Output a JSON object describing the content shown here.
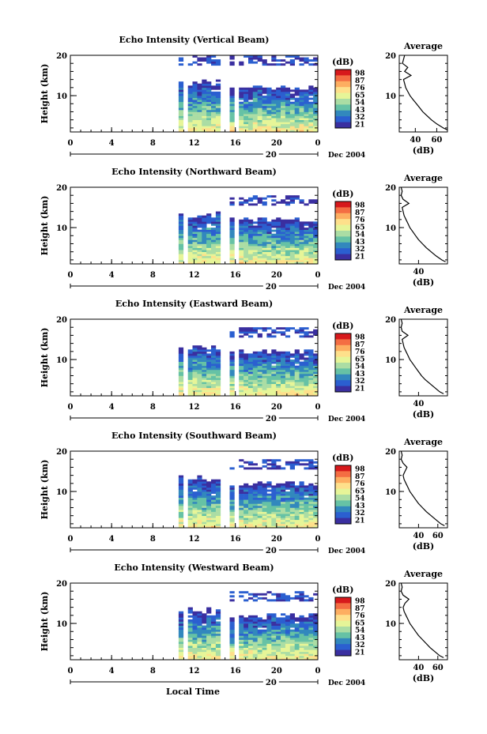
{
  "figure": {
    "xlabel_bottom": "Local Time"
  },
  "colorbar": {
    "unit": "(dB)",
    "tick_labels": [
      "98",
      "87",
      "76",
      "65",
      "54",
      "43",
      "32",
      "21"
    ],
    "colors": [
      "#d7191c",
      "#f46d43",
      "#fdae61",
      "#fee08b",
      "#e6f598",
      "#abdda4",
      "#66c2a5",
      "#3288bd",
      "#2b5fd0",
      "#3a2fa0"
    ]
  },
  "chart_data": [
    {
      "type": "heatmap",
      "title": "Echo Intensity (Vertical Beam)",
      "ylabel": "Height (km)",
      "ylim": [
        1,
        20
      ],
      "yticks": [
        20,
        10
      ],
      "xlim": [
        0,
        24
      ],
      "xticks": [
        "0",
        "4",
        "8",
        "12",
        "16",
        "20",
        "0"
      ],
      "date_axis": {
        "label": "20",
        "suffix": "Dec 2004"
      },
      "data_times": {
        "start": 10.5,
        "end": 24,
        "gaps": [
          [
            11.1,
            11.6
          ],
          [
            12.1,
            12.3
          ],
          [
            14.6,
            15.4
          ],
          [
            15.8,
            16.3
          ]
        ]
      },
      "top_height": 19,
      "colorbar_ticks": [
        "98",
        "87",
        "76",
        "65",
        "54",
        "43",
        "32",
        "21"
      ],
      "profile": {
        "title": "Average",
        "xlabel": "(dB)",
        "xticks": [
          "40",
          "60"
        ],
        "xlim": [
          25,
          70
        ],
        "ylim": [
          1,
          20
        ],
        "yticks": [
          20,
          10
        ],
        "heights": [
          1.5,
          2,
          3,
          4,
          5,
          6,
          7,
          8,
          9,
          10,
          11,
          12,
          13,
          14,
          15,
          16,
          17,
          18,
          19,
          20
        ],
        "values": [
          70,
          66,
          60,
          55,
          51,
          47,
          44,
          41,
          38,
          35,
          33,
          31,
          30,
          29,
          36,
          30,
          33,
          28,
          29,
          30
        ]
      }
    },
    {
      "type": "heatmap",
      "title": "Echo Intensity (Northward Beam)",
      "ylabel": "Height (km)",
      "ylim": [
        1,
        20
      ],
      "yticks": [
        20,
        10
      ],
      "xlim": [
        0,
        24
      ],
      "xticks": [
        "0",
        "4",
        "8",
        "12",
        "16",
        "20",
        "0"
      ],
      "date_axis": {
        "label": "20",
        "suffix": "Dec 2004"
      },
      "data_times": {
        "start": 10.5,
        "end": 24,
        "gaps": [
          [
            11.1,
            11.6
          ],
          [
            12.1,
            12.3
          ],
          [
            14.6,
            15.4
          ],
          [
            15.8,
            16.3
          ]
        ]
      },
      "top_height": 17,
      "colorbar_ticks": [
        "98",
        "87",
        "76",
        "65",
        "54",
        "43",
        "32",
        "21"
      ],
      "profile": {
        "title": "Average",
        "xlabel": "(dB)",
        "xticks": [
          "40"
        ],
        "xlim": [
          20,
          70
        ],
        "ylim": [
          1,
          20
        ],
        "yticks": [
          20,
          10
        ],
        "heights": [
          1.5,
          2,
          3,
          4,
          5,
          6,
          7,
          8,
          9,
          10,
          11,
          12,
          13,
          14,
          15,
          16,
          17,
          18,
          19,
          20
        ],
        "values": [
          68,
          64,
          58,
          53,
          48,
          44,
          40,
          37,
          34,
          31,
          29,
          27,
          25,
          24,
          23,
          30,
          24,
          22,
          23,
          22
        ]
      }
    },
    {
      "type": "heatmap",
      "title": "Echo Intensity (Eastward Beam)",
      "ylabel": "Height (km)",
      "ylim": [
        1,
        20
      ],
      "yticks": [
        20,
        10
      ],
      "xlim": [
        0,
        24
      ],
      "xticks": [
        "0",
        "4",
        "8",
        "12",
        "16",
        "20",
        "0"
      ],
      "date_axis": {
        "label": "20",
        "suffix": "Dec 2004"
      },
      "data_times": {
        "start": 10.5,
        "end": 24,
        "gaps": [
          [
            11.1,
            11.6
          ],
          [
            12.1,
            12.3
          ],
          [
            14.6,
            15.4
          ],
          [
            15.8,
            16.3
          ]
        ]
      },
      "top_height": 17,
      "colorbar_ticks": [
        "98",
        "87",
        "76",
        "65",
        "54",
        "43",
        "32",
        "21"
      ],
      "profile": {
        "title": "Average",
        "xlabel": "(dB)",
        "xticks": [
          "40"
        ],
        "xlim": [
          20,
          70
        ],
        "ylim": [
          1,
          20
        ],
        "yticks": [
          20,
          10
        ],
        "heights": [
          1.5,
          2,
          3,
          4,
          5,
          6,
          7,
          8,
          9,
          10,
          11,
          12,
          13,
          14,
          15,
          16,
          17,
          18,
          19,
          20
        ],
        "values": [
          66,
          62,
          57,
          52,
          47,
          43,
          40,
          37,
          34,
          31,
          29,
          27,
          25,
          24,
          23,
          29,
          23,
          22,
          23,
          22
        ]
      }
    },
    {
      "type": "heatmap",
      "title": "Echo Intensity (Southward Beam)",
      "ylabel": "Height (km)",
      "ylim": [
        1,
        20
      ],
      "yticks": [
        20,
        10
      ],
      "xlim": [
        0,
        24
      ],
      "xticks": [
        "0",
        "4",
        "8",
        "12",
        "16",
        "20",
        "0"
      ],
      "date_axis": {
        "label": "20",
        "suffix": "Dec 2004"
      },
      "data_times": {
        "start": 10.5,
        "end": 24,
        "gaps": [
          [
            11.1,
            11.6
          ],
          [
            12.1,
            12.3
          ],
          [
            14.6,
            15.4
          ],
          [
            15.8,
            16.3
          ]
        ]
      },
      "top_height": 17,
      "colorbar_ticks": [
        "98",
        "87",
        "76",
        "65",
        "54",
        "43",
        "32",
        "21"
      ],
      "profile": {
        "title": "Average",
        "xlabel": "(dB)",
        "xticks": [
          "40",
          "60"
        ],
        "xlim": [
          20,
          70
        ],
        "ylim": [
          1,
          20
        ],
        "yticks": [
          20,
          10
        ],
        "heights": [
          1.5,
          2,
          3,
          4,
          5,
          6,
          7,
          8,
          9,
          10,
          11,
          12,
          13,
          14,
          15,
          16,
          17,
          18,
          19,
          20
        ],
        "values": [
          67,
          63,
          58,
          53,
          48,
          44,
          40,
          37,
          34,
          31,
          29,
          27,
          25,
          24,
          26,
          28,
          24,
          22,
          23,
          22
        ]
      }
    },
    {
      "type": "heatmap",
      "title": "Echo Intensity (Westward Beam)",
      "ylabel": "Height (km)",
      "ylim": [
        1,
        20
      ],
      "yticks": [
        20,
        10
      ],
      "xlim": [
        0,
        24
      ],
      "xticks": [
        "0",
        "4",
        "8",
        "12",
        "16",
        "20",
        "0"
      ],
      "date_axis": {
        "label": "20",
        "suffix": "Dec 2004"
      },
      "data_times": {
        "start": 10.5,
        "end": 24,
        "gaps": [
          [
            11.1,
            11.6
          ],
          [
            12.1,
            12.3
          ],
          [
            14.6,
            15.4
          ],
          [
            15.8,
            16.3
          ]
        ]
      },
      "top_height": 17,
      "colorbar_ticks": [
        "98",
        "87",
        "76",
        "65",
        "54",
        "43",
        "32",
        "21"
      ],
      "profile": {
        "title": "Average",
        "xlabel": "(dB)",
        "xticks": [
          "40",
          "60"
        ],
        "xlim": [
          20,
          70
        ],
        "ylim": [
          1,
          20
        ],
        "yticks": [
          20,
          10
        ],
        "heights": [
          1.5,
          2,
          3,
          4,
          5,
          6,
          7,
          8,
          9,
          10,
          11,
          12,
          13,
          14,
          15,
          16,
          17,
          18,
          19,
          20
        ],
        "values": [
          66,
          62,
          57,
          52,
          48,
          44,
          40,
          37,
          34,
          31,
          29,
          27,
          25,
          24,
          26,
          30,
          24,
          22,
          23,
          22
        ]
      }
    }
  ]
}
